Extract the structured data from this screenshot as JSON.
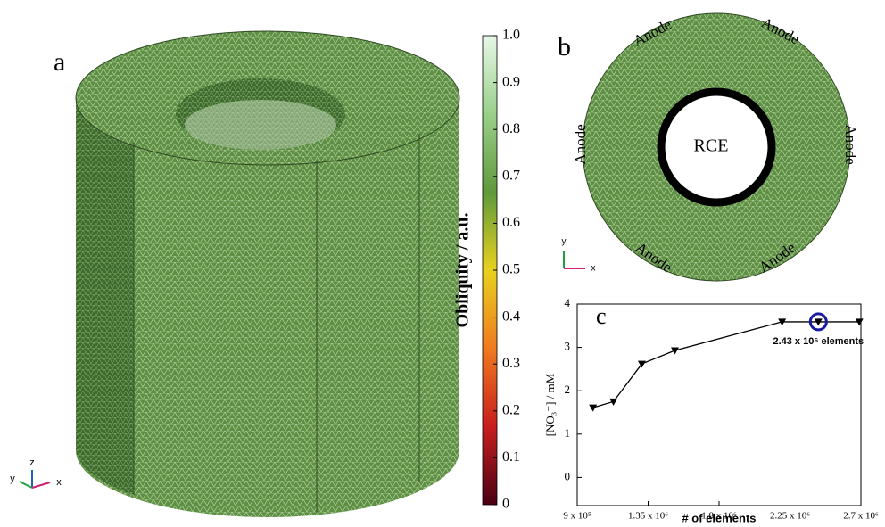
{
  "figure": {
    "panels": [
      "a",
      "b",
      "c"
    ],
    "anode_labels": [
      "Anode",
      "Anode",
      "Anode",
      "Anode",
      "Anode",
      "Anode"
    ],
    "center_label": "RCE",
    "axes_a": [
      "x",
      "y",
      "z"
    ],
    "axes_b": [
      "x",
      "y"
    ]
  },
  "chart_data": [
    {
      "type": "colorbar",
      "label": "Obliquity / a.u.",
      "ylim": [
        0,
        1
      ],
      "yticks": [
        0,
        0.1,
        0.2,
        0.3,
        0.4,
        0.5,
        0.6,
        0.7,
        0.8,
        0.9,
        {
          "value": 1,
          "label": "1.0"
        }
      ],
      "colors": [
        "#4a0014",
        "#c81e1e",
        "#f07a1e",
        "#e8d21e",
        "#5e9a3c",
        "#9ad08a",
        "#e6f8e6"
      ]
    },
    {
      "type": "line",
      "xlabel": "# of elements",
      "ylabel": "[NO₃⁻] / mM",
      "annotation": "2.43 x 10⁶ elements",
      "x": [
        1000000,
        1130000,
        1310000,
        1520000,
        2200000,
        2430000,
        2690000
      ],
      "values": [
        1.61,
        1.75,
        2.62,
        2.93,
        3.59,
        3.59,
        3.59
      ],
      "color": "#000000",
      "xlim": [
        900000,
        2700000
      ],
      "ylim": [
        -0.65,
        4
      ],
      "xticks": [
        {
          "value": 900000,
          "label": "9 x 10⁵"
        },
        {
          "value": 1350000,
          "label": "1.35 x 10⁶"
        },
        {
          "value": 1800000,
          "label": "1.8 x 10⁶"
        },
        {
          "value": 2250000,
          "label": "2.25 x 10⁶"
        },
        {
          "value": 2700000,
          "label": "2.7 x 10⁶"
        }
      ],
      "yticks": [
        0,
        1,
        2,
        3,
        4
      ],
      "highlight_index": 5,
      "highlight_color": "#1a1aa0"
    }
  ]
}
